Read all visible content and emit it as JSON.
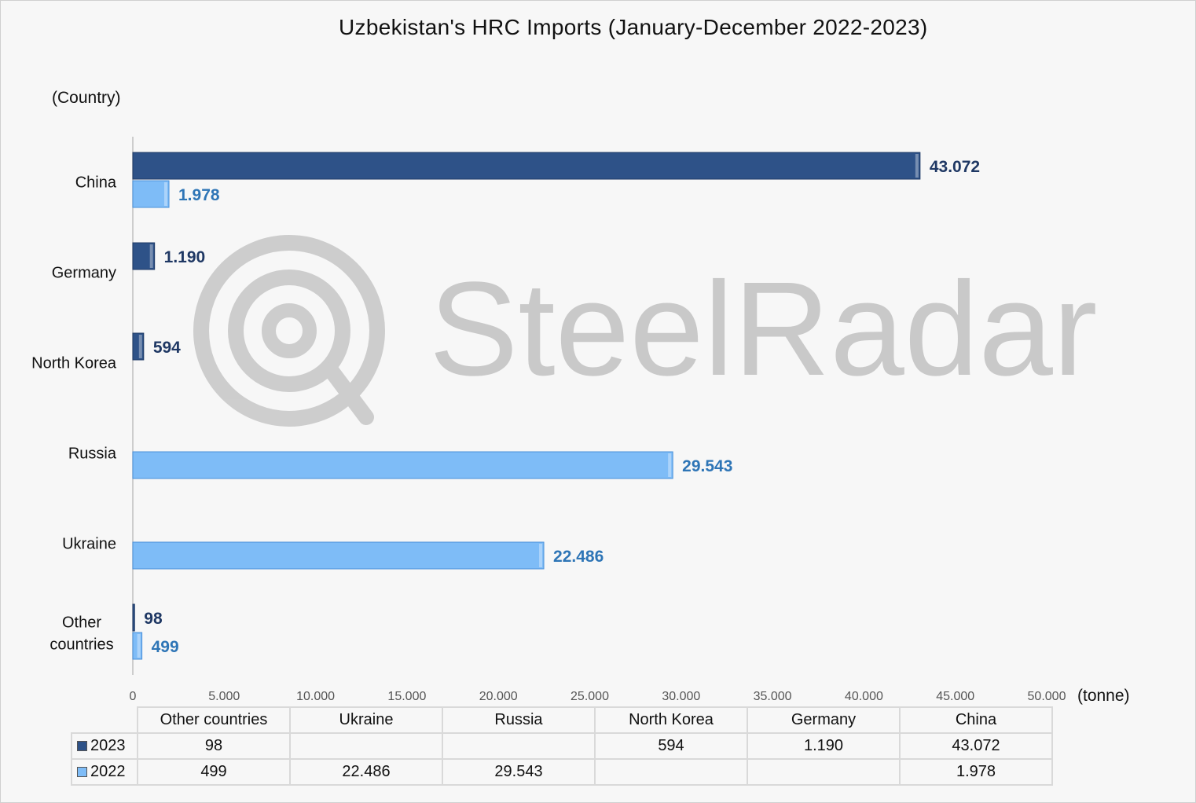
{
  "title": "Uzbekistan's HRC Imports (January-December 2022-2023)",
  "y_axis_label": "(Country)",
  "x_unit_label": "(tonne)",
  "watermark": "SteelRadar",
  "colors": {
    "series_2023": "#2e5288",
    "series_2023_label": "#1f3864",
    "series_2022": "#7ebcf7",
    "series_2022_label": "#2e75b6"
  },
  "chart_data": {
    "type": "bar",
    "orientation": "horizontal",
    "categories": [
      "China",
      "Germany",
      "North Korea",
      "Russia",
      "Ukraine",
      "Other countries"
    ],
    "series": [
      {
        "name": "2023",
        "values": [
          43072,
          1190,
          594,
          null,
          null,
          98
        ],
        "labels": [
          "43.072",
          "1.190",
          "594",
          "",
          "",
          "98"
        ]
      },
      {
        "name": "2022",
        "values": [
          1978,
          null,
          null,
          29543,
          22486,
          499
        ],
        "labels": [
          "1.978",
          "",
          "",
          "29.543",
          "22.486",
          "499"
        ]
      }
    ],
    "xlim": [
      0,
      50000
    ],
    "x_ticks": [
      0,
      5000,
      10000,
      15000,
      20000,
      25000,
      30000,
      35000,
      40000,
      45000,
      50000
    ],
    "x_tick_labels": [
      "0",
      "5.000",
      "10.000",
      "15.000",
      "20.000",
      "25.000",
      "30.000",
      "35.000",
      "40.000",
      "45.000",
      "50.000"
    ],
    "grid": false,
    "legend": "data-table below plot"
  },
  "table": {
    "columns": [
      "Other countries",
      "Ukraine",
      "Russia",
      "North Korea",
      "Germany",
      "China"
    ],
    "rows": [
      {
        "series": "2023",
        "cells": [
          "98",
          "",
          "",
          "594",
          "1.190",
          "43.072"
        ]
      },
      {
        "series": "2022",
        "cells": [
          "499",
          "22.486",
          "29.543",
          "",
          "",
          "1.978"
        ]
      }
    ]
  }
}
